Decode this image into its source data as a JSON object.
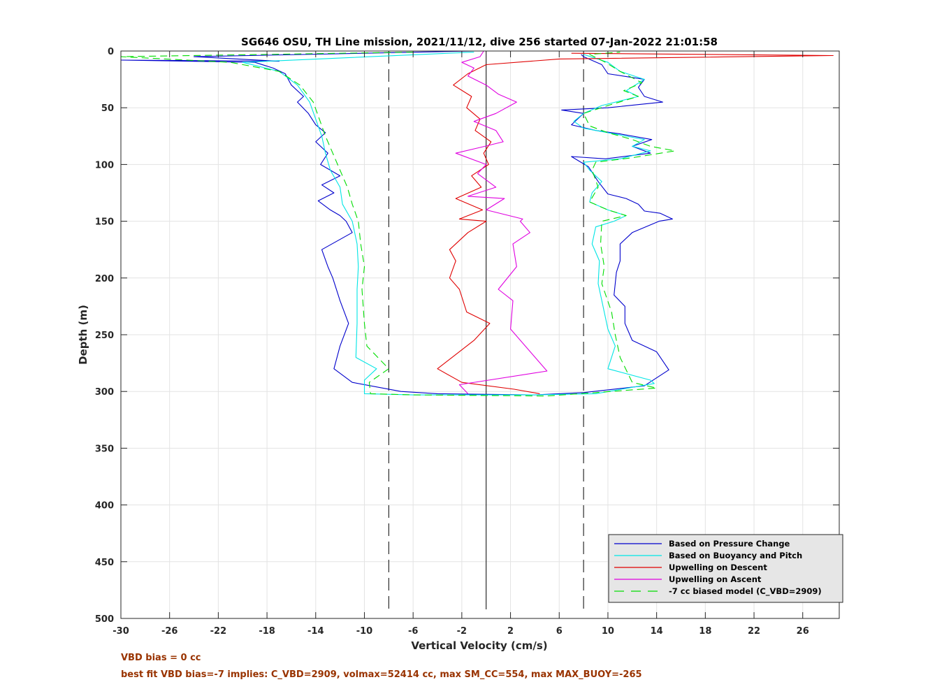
{
  "chart_data": {
    "type": "line",
    "title": "SG646 OSU, TH Line mission, 2021/11/12, dive 256 started 07-Jan-2022 21:01:58",
    "xlabel": "Vertical Velocity (cm/s)",
    "ylabel": "Depth (m)",
    "xlim": [
      -30,
      29
    ],
    "ylim": [
      500,
      0
    ],
    "y_reversed": true,
    "grid": true,
    "x_ticks": [
      -30,
      -26,
      -22,
      -18,
      -14,
      -10,
      -6,
      -2,
      2,
      6,
      10,
      14,
      18,
      22,
      26
    ],
    "y_ticks": [
      0,
      50,
      100,
      150,
      200,
      250,
      300,
      350,
      400,
      450,
      500
    ],
    "legend_position": "bottom-right",
    "reference_lines": {
      "solid_vertical_x": 0,
      "dashed_vertical_x": [
        -8,
        8
      ],
      "color": "#000000"
    },
    "series": [
      {
        "name": "Based on Pressure Change",
        "color": "#0000cc",
        "style": "solid",
        "segments": [
          [
            [
              -1,
              0
            ],
            [
              -24,
              5
            ],
            [
              -17,
              9
            ],
            [
              -30,
              8
            ],
            [
              -19,
              10
            ],
            [
              -17.5,
              15
            ],
            [
              -16.5,
              20
            ],
            [
              -16,
              30
            ],
            [
              -15,
              40
            ],
            [
              -15.5,
              45
            ],
            [
              -14.6,
              55
            ],
            [
              -14,
              65
            ],
            [
              -13.2,
              72
            ],
            [
              -14,
              80
            ],
            [
              -13,
              90
            ],
            [
              -13.6,
              100
            ],
            [
              -12,
              110
            ],
            [
              -13.5,
              118
            ],
            [
              -12.5,
              125
            ],
            [
              -13.8,
              132
            ],
            [
              -12.8,
              140
            ],
            [
              -12,
              145
            ],
            [
              -11.5,
              150
            ],
            [
              -11,
              160
            ],
            [
              -13.5,
              175
            ],
            [
              -13,
              190
            ],
            [
              -12.6,
              200
            ],
            [
              -12,
              220
            ],
            [
              -11.3,
              240
            ],
            [
              -12,
              260
            ],
            [
              -12.5,
              280
            ],
            [
              -11,
              292
            ],
            [
              -7,
              300
            ],
            [
              -4,
              302
            ],
            [
              4,
              303
            ],
            [
              8,
              301
            ],
            [
              13,
              295
            ],
            [
              15,
              281
            ],
            [
              14,
              265
            ],
            [
              12,
              255
            ],
            [
              11.4,
              240
            ],
            [
              11.4,
              225
            ],
            [
              10.5,
              215
            ],
            [
              10.7,
              195
            ],
            [
              11,
              185
            ],
            [
              11,
              170
            ],
            [
              12,
              160
            ],
            [
              14.2,
              150
            ],
            [
              15.3,
              148
            ],
            [
              14.3,
              143
            ],
            [
              13,
              141
            ],
            [
              12.5,
              135
            ],
            [
              11.5,
              130
            ],
            [
              10,
              126
            ],
            [
              9.2,
              115
            ],
            [
              8.4,
              102
            ],
            [
              7,
              93
            ],
            [
              9.8,
              95
            ],
            [
              13.5,
              90
            ],
            [
              12,
              84
            ],
            [
              13.6,
              78
            ],
            [
              11,
              73
            ],
            [
              9,
              70
            ],
            [
              7,
              65
            ],
            [
              8,
              55
            ],
            [
              6.2,
              52
            ],
            [
              10,
              50
            ],
            [
              14.5,
              45
            ],
            [
              13,
              40
            ],
            [
              12.5,
              32
            ],
            [
              13,
              25
            ],
            [
              10,
              20
            ],
            [
              9.5,
              12
            ],
            [
              8,
              5
            ],
            [
              7.8,
              3
            ]
          ]
        ]
      },
      {
        "name": "Based on Buoyancy and Pitch",
        "color": "#00e5e5",
        "style": "solid",
        "segments": [
          [
            [
              -1,
              1
            ],
            [
              -20,
              10
            ],
            [
              -17,
              18
            ],
            [
              -15.5,
              30
            ],
            [
              -14.5,
              45
            ],
            [
              -14,
              60
            ],
            [
              -13.5,
              75
            ],
            [
              -13.2,
              90
            ],
            [
              -12.8,
              105
            ],
            [
              -12,
              120
            ],
            [
              -11.8,
              135
            ],
            [
              -11,
              150
            ],
            [
              -10.6,
              170
            ],
            [
              -10.5,
              190
            ],
            [
              -10.6,
              210
            ],
            [
              -10.6,
              240
            ],
            [
              -10.7,
              270
            ],
            [
              -9,
              280
            ],
            [
              -10,
              290
            ],
            [
              -10,
              302
            ],
            [
              -6,
              303
            ],
            [
              4,
              303
            ],
            [
              9,
              302
            ],
            [
              13.8,
              293
            ],
            [
              13.5,
              290
            ],
            [
              10,
              280
            ],
            [
              10.6,
              260
            ],
            [
              10,
              245
            ],
            [
              9.7,
              230
            ],
            [
              9.2,
              205
            ],
            [
              9.3,
              185
            ],
            [
              8.7,
              170
            ],
            [
              9,
              155
            ],
            [
              10.5,
              150
            ],
            [
              11.5,
              145
            ],
            [
              10,
              140
            ],
            [
              8.5,
              133
            ],
            [
              8.7,
              125
            ],
            [
              9.5,
              115
            ],
            [
              8.5,
              105
            ],
            [
              8,
              98
            ],
            [
              11,
              95
            ],
            [
              13.5,
              88
            ],
            [
              12,
              84
            ],
            [
              13,
              78
            ],
            [
              11,
              74
            ],
            [
              8,
              68
            ],
            [
              7.2,
              62
            ],
            [
              8,
              55
            ],
            [
              9.5,
              48
            ],
            [
              12.5,
              40
            ],
            [
              11.5,
              35
            ],
            [
              13,
              25
            ],
            [
              11,
              18
            ],
            [
              10,
              10
            ],
            [
              8,
              3
            ]
          ]
        ]
      },
      {
        "name": "Upwelling on Descent",
        "color": "#e00000",
        "style": "solid",
        "segments": [
          [
            [
              7,
              2
            ],
            [
              28.5,
              4
            ],
            [
              6,
              7
            ],
            [
              0,
              12
            ],
            [
              -1.5,
              20
            ],
            [
              -2.7,
              30
            ],
            [
              -1.2,
              40
            ],
            [
              -1.6,
              50
            ],
            [
              -0.5,
              60
            ],
            [
              -0.9,
              70
            ],
            [
              0.4,
              80
            ],
            [
              -0.2,
              90
            ],
            [
              0.2,
              100
            ],
            [
              -1.2,
              110
            ],
            [
              -0.4,
              120
            ],
            [
              -2.5,
              130
            ],
            [
              -0.3,
              140
            ],
            [
              -2.2,
              148
            ],
            [
              0,
              150
            ],
            [
              -1.5,
              160
            ],
            [
              -3,
              175
            ],
            [
              -2.5,
              185
            ],
            [
              -3,
              200
            ],
            [
              -2.2,
              210
            ],
            [
              -1.6,
              230
            ],
            [
              0.3,
              240
            ],
            [
              -1,
              255
            ],
            [
              -4,
              280
            ],
            [
              -2,
              292
            ],
            [
              2.3,
              298
            ],
            [
              4.4,
              302
            ]
          ]
        ]
      },
      {
        "name": "Upwelling on Ascent",
        "color": "#e000e0",
        "style": "solid",
        "segments": [
          [
            [
              -1.5,
              302
            ],
            [
              -2.2,
              294
            ],
            [
              5,
              282
            ],
            [
              2,
              245
            ],
            [
              2.2,
              220
            ],
            [
              1,
              210
            ],
            [
              2.5,
              190
            ],
            [
              2.2,
              170
            ],
            [
              3.6,
              160
            ],
            [
              2.8,
              150
            ],
            [
              3,
              148
            ],
            [
              0,
              140
            ],
            [
              1.5,
              130
            ],
            [
              -1.5,
              128
            ],
            [
              0.8,
              120
            ],
            [
              -0.7,
              108
            ],
            [
              0,
              100
            ],
            [
              -2.5,
              90
            ],
            [
              -0.5,
              85
            ],
            [
              1.4,
              80
            ],
            [
              0.8,
              70
            ],
            [
              -1,
              62
            ],
            [
              0.8,
              55
            ],
            [
              2.5,
              45
            ],
            [
              1,
              38
            ],
            [
              0,
              30
            ],
            [
              -1.5,
              22
            ],
            [
              -1,
              15
            ],
            [
              -2,
              10
            ],
            [
              -0.5,
              5
            ],
            [
              -0.2,
              0
            ]
          ]
        ]
      },
      {
        "name": "-7 cc biased model (C_VBD=2909)",
        "color": "#00dd00",
        "style": "dashed",
        "segments": [
          [
            [
              -6,
              1
            ],
            [
              -30,
              5
            ],
            [
              -21,
              10
            ],
            [
              -17,
              18
            ],
            [
              -15.3,
              30
            ],
            [
              -14.2,
              45
            ],
            [
              -13.7,
              60
            ],
            [
              -13.2,
              75
            ],
            [
              -12.6,
              90
            ],
            [
              -12,
              105
            ],
            [
              -11.4,
              120
            ],
            [
              -11,
              135
            ],
            [
              -10.5,
              150
            ],
            [
              -10.3,
              170
            ],
            [
              -10,
              190
            ],
            [
              -10.2,
              210
            ],
            [
              -10,
              240
            ],
            [
              -9.8,
              260
            ],
            [
              -8,
              280
            ],
            [
              -9.6,
              292
            ],
            [
              -9.5,
              302
            ],
            [
              -6,
              303
            ],
            [
              5,
              304
            ],
            [
              9,
              301
            ],
            [
              14,
              297
            ],
            [
              12,
              292
            ],
            [
              11,
              270
            ],
            [
              10.6,
              250
            ],
            [
              10.3,
              230
            ],
            [
              9.5,
              205
            ],
            [
              9.7,
              190
            ],
            [
              9.4,
              170
            ],
            [
              9.5,
              150
            ],
            [
              11.5,
              145
            ],
            [
              10,
              140
            ],
            [
              8.5,
              133
            ],
            [
              9.2,
              120
            ],
            [
              8.7,
              105
            ],
            [
              9,
              98
            ],
            [
              12,
              94
            ],
            [
              15.5,
              88
            ],
            [
              13.5,
              84
            ],
            [
              12,
              78
            ],
            [
              10,
              72
            ],
            [
              8.5,
              66
            ],
            [
              8,
              55
            ],
            [
              10,
              48
            ],
            [
              12.5,
              40
            ],
            [
              11.3,
              35
            ],
            [
              12.8,
              28
            ],
            [
              11,
              18
            ],
            [
              9.8,
              10
            ],
            [
              8.5,
              3
            ],
            [
              11,
              1
            ]
          ]
        ]
      }
    ],
    "annotations": [
      {
        "text": "VBD bias = 0 cc",
        "color": "#993300"
      },
      {
        "text": "best fit VBD bias=-7 implies: C_VBD=2909, volmax=52414 cc, max SM_CC=554, max MAX_BUOY=-265",
        "color": "#993300"
      }
    ]
  }
}
